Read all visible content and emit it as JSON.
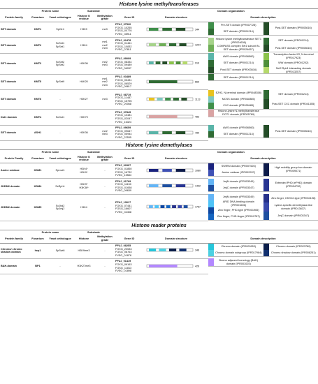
{
  "sections": [
    {
      "title": "Histone lysine methyltransferases",
      "groups": [
        "Protein name",
        "Substrate",
        "Domain organization"
      ],
      "columns": [
        "Protein family",
        "Fusarium",
        "Yeast orthologue",
        "Histone K residue",
        "Methylation grade",
        "Gene ID",
        "Domain structure",
        "Domain description"
      ],
      "rows": [
        {
          "family": "SET domain",
          "fusarium": [
            "KMT1"
          ],
          "yeast": [
            "SpClr4"
          ],
          "residue": [
            "H3K9"
          ],
          "grade": [
            "me3"
          ],
          "genes": [
            "FFUJ_07520",
            "FOXG_10255",
            "FGSG_00776",
            "FVEG_08911"
          ],
          "length": "344",
          "left": [
            {
              "name": "Pre-SET domain (IPR007728)",
              "color": "#3f8f4a"
            },
            {
              "name": "SET domain (IPR001214)",
              "color": "#2f6b34"
            }
          ],
          "right": [
            {
              "name": "Post-SET domain (IPR003616)",
              "color": "#244d28"
            }
          ]
        },
        {
          "family": "SET domain",
          "fusarium": [
            "KMT2"
          ],
          "yeast": [
            "ScSet1",
            "SpSet1"
          ],
          "residue": [
            "H3K4"
          ],
          "grade": [
            "me1",
            "me2",
            "me3"
          ],
          "genes": [
            "FFUJ_02478",
            "FOXG_01461",
            "FGSG_10832",
            "FVEG_07811"
          ],
          "length": "1204",
          "left": [
            {
              "name": "Histone lysine methyltransferase SET1 (IPR024636)",
              "color": "#a6d38a"
            },
            {
              "name": "COMPASS complex Set1 subunit N-SET domain (IPR024657)",
              "color": "#6fae58"
            }
          ],
          "right": [
            {
              "name": "SET domain (IPR001214)",
              "color": "#2f6b34"
            },
            {
              "name": "Post-SET domain (IPR003616)",
              "color": "#244d28"
            }
          ]
        },
        {
          "family": "SET domain",
          "fusarium": [
            "KMT3"
          ],
          "yeast": [
            "ScSet2",
            "SpSet2"
          ],
          "residue": [
            "H3K36"
          ],
          "grade": [
            "me2",
            "me3"
          ],
          "genes": [
            "FFUJ_09009",
            "FOXG_08334",
            "FGSG_09489",
            "FVEG_06037"
          ],
          "length": "919",
          "left": [
            {
              "name": "AWS domain (IPR006560)",
              "color": "#5ab4a8"
            },
            {
              "name": "SET domain (IPR001214)",
              "color": "#2f6b34"
            },
            {
              "name": "Post-SET domain (IPR003616)",
              "color": "#244d28"
            }
          ],
          "right": [
            {
              "name": "Transcription factor IIS, N-terminal (IPR017923)",
              "color": "#8bc34a"
            },
            {
              "name": "WW domain (IPR001202)",
              "color": "#4e8f3a"
            },
            {
              "name": "Set2 Rpb1 interacting domain (IPR013257)",
              "color": "#b5d96b"
            }
          ]
        },
        {
          "family": "SET domain",
          "fusarium": [
            "KMT5"
          ],
          "yeast": [
            "SpSet9"
          ],
          "residue": [
            "H4K20"
          ],
          "grade": [
            "me1",
            "me2",
            "me3"
          ],
          "genes": [
            "FFUJ_03489",
            "FOXG_03431",
            "FGSG_06529",
            "FVEG_09617"
          ],
          "length": "669",
          "left": [
            {
              "name": "SET domain (IPR001214)",
              "color": "#2f6b34"
            }
          ],
          "right": []
        },
        {
          "family": "SET domain",
          "fusarium": [
            "KMT6"
          ],
          "yeast": [
            "-"
          ],
          "residue": [
            "H3K27"
          ],
          "grade": [
            "me3"
          ],
          "genes": [
            "FFUJ_08719",
            "FOXG_11487",
            "FGSG_15795",
            "FVEG_20068"
          ],
          "length": "1113",
          "left": [
            {
              "name": "EZH2, N-terminal domain (IPR048358)",
              "color": "#e8c21f"
            },
            {
              "name": "MCSS domain (IPR048365)",
              "color": "#7fc8c0"
            },
            {
              "name": "CXC domain (IPR026489)",
              "color": "#3f8f4a"
            }
          ],
          "right": [
            {
              "name": "SET domain (IPR001214)",
              "color": "#2f6b34"
            },
            {
              "name": "Post-SET CXC domain (IPR041355)",
              "color": "#244d28"
            }
          ]
        },
        {
          "family": "Dot1 domain",
          "fusarium": [
            "KMT4"
          ],
          "yeast": [
            "ScDot1"
          ],
          "residue": [
            "H3K79"
          ],
          "grade": [],
          "genes": [
            "FFUJ_07845",
            "FOXG_10481",
            "FGSG_02047",
            "FVEG_16324"
          ],
          "length": "483",
          "left": [
            {
              "name": "Histone-lysine N-methyltransferase DOT1 domain (IPR025789)",
              "color": "#d9a3a3"
            }
          ],
          "right": []
        },
        {
          "family": "SET domain",
          "fusarium": [
            "ASH1"
          ],
          "yeast": [
            "-"
          ],
          "residue": [
            "H3K36"
          ],
          "grade": [
            "me2",
            "Me3"
          ],
          "genes": [
            "FFUJ_09659",
            "FOXG_09647",
            "FGSG_05944",
            "FVEG_22535"
          ],
          "length": "780",
          "left": [
            {
              "name": "AWS domain (IPR006560)",
              "color": "#5ab4a8"
            },
            {
              "name": "SET domain (IPR001214)",
              "color": "#2f6b34"
            }
          ],
          "right": [
            {
              "name": "Post-SET domain (IPR003616)",
              "color": "#244d28"
            }
          ]
        }
      ]
    },
    {
      "title": "Histone lysine demethylases",
      "groups": [
        "Protein name",
        "Substrate",
        "Domain organization"
      ],
      "columns": [
        "Protein Family",
        "Fusarium",
        "Yeast orthologue",
        "Histone K residue",
        "Methylation grade",
        "Gene ID",
        "Domain structure",
        "Domain description"
      ],
      "rows": [
        {
          "family": "Amine oxidase",
          "fusarium": [
            "KDM1"
          ],
          "yeast": [
            "SpLsd1"
          ],
          "residue": [
            "H3K4*",
            "H3K9*"
          ],
          "grade": [
            "-"
          ],
          "genes": [
            "FFUJ_02997",
            "FOXG_01850",
            "FGSG_16732",
            "FVEG_15584"
          ],
          "length": "1080",
          "left": [
            {
              "name": "SWIRM domain (IPR007526)",
              "color": "#1a237e"
            },
            {
              "name": "Amine oxidase (IPR002937)",
              "color": "#3f51b5"
            }
          ],
          "right": [
            {
              "name": "High mobility group box domain (IPR009071)",
              "color": "#0d1b4a"
            }
          ]
        },
        {
          "family": "JHDM2 domain",
          "fusarium": [
            "KDM4"
          ],
          "yeast": [
            "ScRph1"
          ],
          "residue": [
            "H3K9*",
            "H3K36*"
          ],
          "grade": [
            "-"
          ],
          "genes": [
            "FFUJ_01769",
            "FOXG_11150",
            "FGSG_01658",
            "FVEG_09639"
          ],
          "length": "1492",
          "left": [
            {
              "name": "JmjN domain (IPR003349)",
              "color": "#64b5f6"
            },
            {
              "name": "JmjC domain (IPR003347)",
              "color": "#1e4fa0"
            }
          ],
          "right": [
            {
              "name": "Extended PHD (ePHD) domain (IPR034732)",
              "color": "#283593"
            }
          ]
        },
        {
          "family": "JHDM2 domain",
          "fusarium": [
            "KDM5"
          ],
          "yeast": [
            "ScJhd2",
            "SpJmj2"
          ],
          "residue": [
            "H3K4"
          ],
          "grade": [
            "-"
          ],
          "genes": [
            "FFUJ_13017",
            "FOXG_07441",
            "FGSG_16607",
            "FVEG_04458"
          ],
          "length": "1767",
          "left": [
            {
              "name": "JmjN domain (IPR003349)",
              "color": "#64b5f6"
            },
            {
              "name": "ARID DNA-binding domain (IPR001606)",
              "color": "#4fc3f7"
            },
            {
              "name": "Zinc finger, PHD-type (IPR001965)",
              "color": "#0d47a1"
            },
            {
              "name": "Zinc finger, PHD-finger (IPR019787)",
              "color": "#1565c0"
            }
          ],
          "right": [
            {
              "name": "Zinc finger, C5HC2-type (IPR004198)",
              "color": "#26318a"
            },
            {
              "name": "Lysine-specific demethylase-like domain (IPR013637)",
              "color": "#3949ab"
            },
            {
              "name": "JmjC domain (IPR003347)",
              "color": "#1e4fa0"
            }
          ]
        }
      ]
    },
    {
      "title": "Histone reader proteins",
      "groups": [
        "Protein name",
        "Substrate"
      ],
      "columns": [
        "Protein family",
        "Fusarium",
        "Yeast orthologue",
        "Histone",
        "Methylation grade",
        "Gene ID",
        "Domain structure",
        "Domain description"
      ],
      "rows": [
        {
          "family": "Chromo/ chromo shadow domain",
          "fusarium": [
            "hep1"
          ],
          "yeast": [
            "SpSwi6"
          ],
          "residue": [
            "H3K9me3"
          ],
          "grade": [
            "-"
          ],
          "genes": [
            "FFUJ_08255",
            "FOXG_20533",
            "FGSG_08763",
            "FVEG_01878"
          ],
          "length": "346",
          "left": [
            {
              "name": "Chromo domain (IPR000953)",
              "color": "#26c6da"
            },
            {
              "name": "Chromo domain subgroup (IPR017984)",
              "color": "#4dd0e1"
            }
          ],
          "right": [
            {
              "name": "Chromo domain (IPR023780)",
              "color": "#0b1f4a"
            },
            {
              "name": "Chromo shadow domain (IPR008251)",
              "color": "#12306e"
            }
          ]
        },
        {
          "family": "BAH-domain",
          "fusarium": [
            "BP1"
          ],
          "yeast": [
            "-"
          ],
          "residue": [
            "H3K27me3"
          ],
          "grade": [
            "-"
          ],
          "genes": [
            "FFUJ_01419",
            "FOXG_06163",
            "FGSG_11813",
            "FVEG_01898"
          ],
          "length": "426",
          "left": [
            {
              "name": "Bromo adjacent homology (BAH) domain (IPR001025)",
              "color": "#b388ff"
            }
          ],
          "right": []
        }
      ]
    }
  ]
}
